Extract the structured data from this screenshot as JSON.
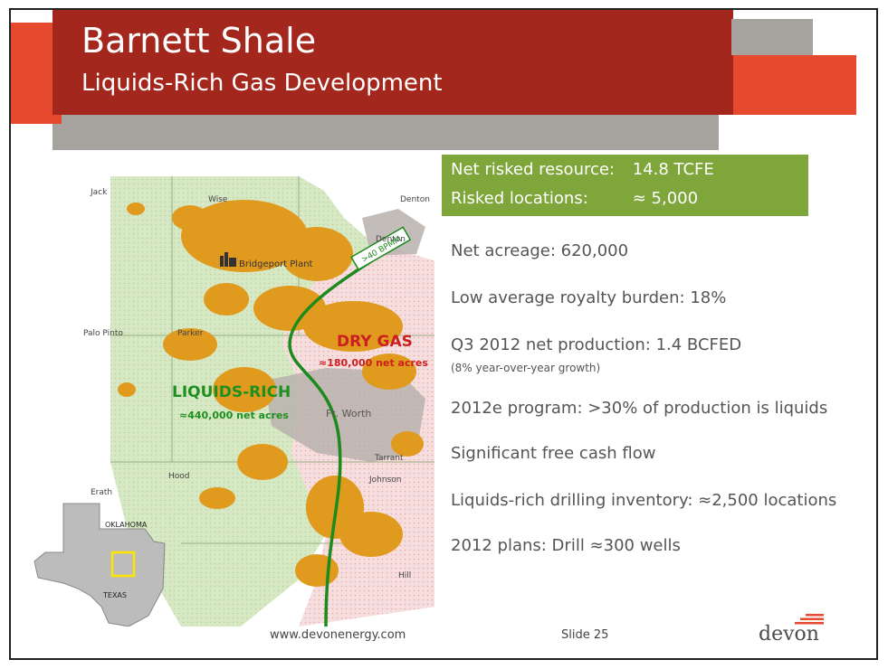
{
  "header": {
    "title": "Barnett Shale",
    "subtitle": "Liquids-Rich Gas Development"
  },
  "summary": {
    "rows": [
      {
        "label": "Net risked resource:",
        "value": "14.8 TCFE"
      },
      {
        "label": "Risked locations:",
        "value": "≈ 5,000"
      }
    ]
  },
  "bullets": [
    "Net acreage: 620,000",
    "Low average royalty burden: 18%",
    "Q3 2012 net production: 1.4 BCFED",
    "2012e program: >30% of production is liquids",
    "Significant free cash flow",
    "Liquids-rich drilling inventory: ≈2,500 locations",
    "2012 plans: Drill ≈300 wells"
  ],
  "production_note": "(8% year-over-year growth)",
  "map": {
    "counties": [
      "Jack",
      "Wise",
      "Denton",
      "Denton",
      "Palo Pinto",
      "Parker",
      "Tarrant",
      "Johnson",
      "Hood",
      "Erath",
      "Hill"
    ],
    "city": "Ft. Worth",
    "plant": "Bridgeport Plant",
    "pipeline_label": ">40 BPMM",
    "zones": {
      "liquids": {
        "name": "LIQUIDS-RICH",
        "acres": "≈440,000 net acres",
        "color": "#1f8f1f"
      },
      "dry": {
        "name": "DRY GAS",
        "acres": "≈180,000 net acres",
        "color": "#cc1f1f"
      }
    },
    "inset": {
      "state": "TEXAS",
      "neighbor": "OKLAHOMA"
    }
  },
  "footer": {
    "url": "www.devonenergy.com",
    "slide": "Slide 25",
    "logo": "devon"
  },
  "colors": {
    "title_band": "#a3271c",
    "accent": "#e64a2e",
    "gray": "#a6a39e",
    "kpi_green": "#7fa63a"
  }
}
